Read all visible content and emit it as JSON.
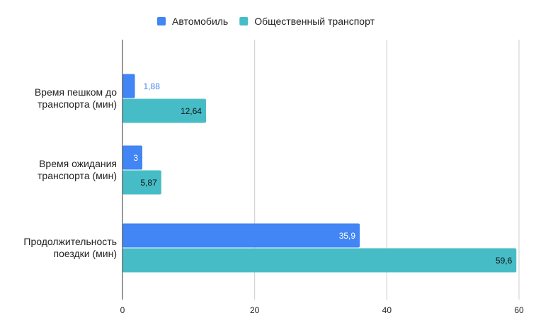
{
  "chart_data": {
    "type": "bar",
    "orientation": "horizontal",
    "categories": [
      [
        "Время пешком до",
        "транспорта (мин)"
      ],
      [
        "Время ожидания",
        "транспорта (мин)"
      ],
      [
        "Продолжительность",
        "поездки (мин)"
      ]
    ],
    "series": [
      {
        "name": "Автомобиль",
        "color": "#4285f4",
        "values": [
          1.88,
          3,
          35.9
        ],
        "labels": [
          "1,88",
          "3",
          "35,9"
        ]
      },
      {
        "name": "Общественный транспорт",
        "color": "#46bdc6",
        "values": [
          12.64,
          5.87,
          59.6
        ],
        "labels": [
          "12,64",
          "5,87",
          "59,6"
        ]
      }
    ],
    "x_ticks": [
      "0",
      "20",
      "40",
      "60"
    ],
    "x_tick_values": [
      0,
      20,
      40,
      60
    ],
    "xlim": [
      0,
      60
    ],
    "grid": true,
    "legend_position": "top"
  }
}
